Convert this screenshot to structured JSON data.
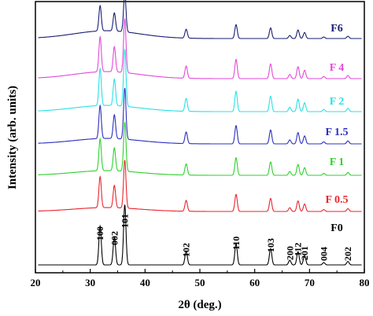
{
  "chart_data": {
    "type": "line",
    "xlabel": "2θ (deg.)",
    "ylabel": "Intensity (arb. units)",
    "xlim": [
      20,
      80
    ],
    "x_ticks": [
      "20",
      "30",
      "40",
      "50",
      "60",
      "70",
      "80"
    ],
    "y_ticks": "none",
    "grid": false,
    "legend": "labels at right end of each curve",
    "peaks": [
      {
        "position": 31.8,
        "intensity": 1.0
      },
      {
        "position": 34.4,
        "intensity": 0.72
      },
      {
        "position": 36.3,
        "intensity": 1.55
      },
      {
        "position": 47.5,
        "intensity": 0.35
      },
      {
        "position": 56.6,
        "intensity": 0.55
      },
      {
        "position": 62.9,
        "intensity": 0.42
      },
      {
        "position": 66.4,
        "intensity": 0.12
      },
      {
        "position": 67.9,
        "intensity": 0.34
      },
      {
        "position": 69.1,
        "intensity": 0.24
      },
      {
        "position": 72.6,
        "intensity": 0.06
      },
      {
        "position": 77.0,
        "intensity": 0.09
      }
    ],
    "peak_labels": [
      {
        "text": "100",
        "x": 31.8
      },
      {
        "text": "002",
        "x": 34.4
      },
      {
        "text": "101",
        "x": 36.3
      },
      {
        "text": "102",
        "x": 47.5
      },
      {
        "text": "110",
        "x": 56.6
      },
      {
        "text": "103",
        "x": 62.9
      },
      {
        "text": "200",
        "x": 66.4
      },
      {
        "text": "112",
        "x": 67.9
      },
      {
        "text": "201",
        "x": 69.1
      },
      {
        "text": "004",
        "x": 72.6
      },
      {
        "text": "202",
        "x": 77.0
      }
    ],
    "series": [
      {
        "name": "F0",
        "color": "#000000",
        "scale": 1.0,
        "hump": 0.0
      },
      {
        "name": "F 0.5",
        "color": "#e8262e",
        "scale": 0.8,
        "hump": 0.1
      },
      {
        "name": "F 1",
        "color": "#2ed12e",
        "scale": 0.82,
        "hump": 0.12
      },
      {
        "name": "F 1.5",
        "color": "#2b2fbf",
        "scale": 0.85,
        "hump": 0.14
      },
      {
        "name": "F 2",
        "color": "#29e1e6",
        "scale": 0.95,
        "hump": 0.16
      },
      {
        "name": "F 4",
        "color": "#e24ad8",
        "scale": 0.9,
        "hump": 0.18
      },
      {
        "name": "F6",
        "color": "#1a1f73",
        "scale": 0.65,
        "hump": 0.2
      }
    ]
  }
}
